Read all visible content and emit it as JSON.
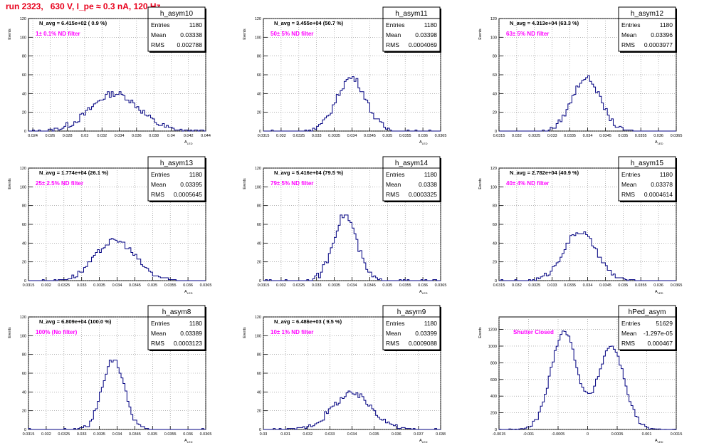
{
  "title": "run 2323,   630 V, I_pe ≈ 0.3 nA, 120 Hz",
  "y_axis_label": "Events",
  "x_axis_label": "A",
  "x_axis_label_sub": "LED",
  "stats_labels": {
    "entries": "Entries",
    "mean": "Mean",
    "rms": "RMS"
  },
  "colors": {
    "histogram": "#000080",
    "annotation": "#ff00ff",
    "title": "#e8001c"
  },
  "chart_data": [
    {
      "type": "histogram",
      "name": "h_asym10",
      "navg": "N_avg = 6.415e+02 ( 0.9 %)",
      "filter": "1± 0.1% ND filter",
      "entries": "1180",
      "mean": "0.03338",
      "rms": "0.002788",
      "xlim": [
        0.0235,
        0.044
      ],
      "ylim": [
        0,
        120
      ],
      "grid": true,
      "xticks": [
        0.024,
        0.026,
        0.028,
        0.03,
        0.032,
        0.034,
        0.036,
        0.038,
        0.04,
        0.042,
        0.044
      ],
      "xticklabels": [
        "0.024",
        "0.026",
        "0.028",
        "0.03",
        "0.032",
        "0.034",
        "0.036",
        "0.038",
        "0.04",
        "0.042",
        "0.044"
      ],
      "yticks": [
        0,
        20,
        40,
        60,
        80,
        100,
        120
      ],
      "yticklabels": [
        "0",
        "20",
        "40",
        "60",
        "80",
        "100",
        "120"
      ],
      "gauss": {
        "mu": 0.0335,
        "sigma": 0.0028,
        "peak": 40,
        "noise": 7
      }
    },
    {
      "type": "histogram",
      "name": "h_asym11",
      "navg": "N_avg = 3.455e+04 (50.7 %)",
      "filter": "50± 5% ND filter",
      "entries": "1180",
      "mean": "0.03398",
      "rms": "0.0004069",
      "xlim": [
        0.0315,
        0.0365
      ],
      "ylim": [
        0,
        120
      ],
      "grid": true,
      "xticks": [
        0.0315,
        0.032,
        0.0325,
        0.033,
        0.0335,
        0.034,
        0.0345,
        0.035,
        0.0355,
        0.036,
        0.0365
      ],
      "xticklabels": [
        "0.0315",
        "0.032",
        "0.0325",
        "0.033",
        "0.0335",
        "0.034",
        "0.0345",
        "0.035",
        "0.0355",
        "0.036",
        "0.0365"
      ],
      "yticks": [
        0,
        20,
        40,
        60,
        80,
        100,
        120
      ],
      "yticklabels": [
        "0",
        "20",
        "40",
        "60",
        "80",
        "100",
        "120"
      ],
      "gauss": {
        "mu": 0.03398,
        "sigma": 0.00041,
        "peak": 57,
        "noise": 7
      }
    },
    {
      "type": "histogram",
      "name": "h_asym12",
      "navg": "N_avg = 4.313e+04 (63.3 %)",
      "filter": "63± 5% ND filter",
      "entries": "1180",
      "mean": "0.03396",
      "rms": "0.0003977",
      "xlim": [
        0.0315,
        0.0365
      ],
      "ylim": [
        0,
        120
      ],
      "grid": true,
      "xticks": [
        0.0315,
        0.032,
        0.0325,
        0.033,
        0.0335,
        0.034,
        0.0345,
        0.035,
        0.0355,
        0.036,
        0.0365
      ],
      "xticklabels": [
        "0.0315",
        "0.032",
        "0.0325",
        "0.033",
        "0.0335",
        "0.034",
        "0.0345",
        "0.035",
        "0.0355",
        "0.036",
        "0.0365"
      ],
      "yticks": [
        0,
        20,
        40,
        60,
        80,
        100,
        120
      ],
      "yticklabels": [
        "0",
        "20",
        "40",
        "60",
        "80",
        "100",
        "120"
      ],
      "gauss": {
        "mu": 0.03396,
        "sigma": 0.0004,
        "peak": 57,
        "noise": 6
      }
    },
    {
      "type": "histogram",
      "name": "h_asym13",
      "navg": "N_avg = 1.774e+04 (26.1 %)",
      "filter": "25± 2.5% ND filter",
      "entries": "1180",
      "mean": "0.03395",
      "rms": "0.0005645",
      "xlim": [
        0.0315,
        0.0365
      ],
      "ylim": [
        0,
        120
      ],
      "grid": true,
      "xticks": [
        0.0315,
        0.032,
        0.0325,
        0.033,
        0.0335,
        0.034,
        0.0345,
        0.035,
        0.0355,
        0.036,
        0.0365
      ],
      "xticklabels": [
        "0.0315",
        "0.032",
        "0.0325",
        "0.033",
        "0.0335",
        "0.034",
        "0.0345",
        "0.035",
        "0.0355",
        "0.036",
        "0.0365"
      ],
      "yticks": [
        0,
        20,
        40,
        60,
        80,
        100,
        120
      ],
      "yticklabels": [
        "0",
        "20",
        "40",
        "60",
        "80",
        "100",
        "120"
      ],
      "gauss": {
        "mu": 0.03395,
        "sigma": 0.00056,
        "peak": 43,
        "noise": 6
      }
    },
    {
      "type": "histogram",
      "name": "h_asym14",
      "navg": "N_avg = 5.416e+04 (79.5 %)",
      "filter": "79± 5% ND filter",
      "entries": "1180",
      "mean": "0.0338",
      "rms": "0.0003325",
      "xlim": [
        0.0315,
        0.0365
      ],
      "ylim": [
        0,
        120
      ],
      "grid": true,
      "xticks": [
        0.0315,
        0.032,
        0.0325,
        0.033,
        0.0335,
        0.034,
        0.0345,
        0.035,
        0.0355,
        0.036,
        0.0365
      ],
      "xticklabels": [
        "0.0315",
        "0.032",
        "0.0325",
        "0.033",
        "0.0335",
        "0.034",
        "0.0345",
        "0.035",
        "0.0355",
        "0.036",
        "0.0365"
      ],
      "yticks": [
        0,
        20,
        40,
        60,
        80,
        100,
        120
      ],
      "yticklabels": [
        "0",
        "20",
        "40",
        "60",
        "80",
        "100",
        "120"
      ],
      "gauss": {
        "mu": 0.0338,
        "sigma": 0.00033,
        "peak": 70,
        "noise": 8
      }
    },
    {
      "type": "histogram",
      "name": "h_asym15",
      "navg": "N_avg = 2.782e+04 (40.9 %)",
      "filter": "40± 4% ND filter",
      "entries": "1180",
      "mean": "0.03378",
      "rms": "0.0004614",
      "xlim": [
        0.0315,
        0.0365
      ],
      "ylim": [
        0,
        120
      ],
      "grid": true,
      "xticks": [
        0.0315,
        0.032,
        0.0325,
        0.033,
        0.0335,
        0.034,
        0.0345,
        0.035,
        0.0355,
        0.036,
        0.0365
      ],
      "xticklabels": [
        "0.0315",
        "0.032",
        "0.0325",
        "0.033",
        "0.0335",
        "0.034",
        "0.0345",
        "0.035",
        "0.0355",
        "0.036",
        "0.0365"
      ],
      "yticks": [
        0,
        20,
        40,
        60,
        80,
        100,
        120
      ],
      "yticklabels": [
        "0",
        "20",
        "40",
        "60",
        "80",
        "100",
        "120"
      ],
      "gauss": {
        "mu": 0.03378,
        "sigma": 0.00046,
        "peak": 52,
        "noise": 6
      }
    },
    {
      "type": "histogram",
      "name": "h_asym8",
      "navg": "N_avg = 6.809e+04 (100.0 %)",
      "filter": "100% (No filter)",
      "entries": "1180",
      "mean": "0.03389",
      "rms": "0.0003123",
      "xlim": [
        0.0315,
        0.0365
      ],
      "ylim": [
        0,
        120
      ],
      "grid": true,
      "xticks": [
        0.0315,
        0.032,
        0.0325,
        0.033,
        0.0335,
        0.034,
        0.0345,
        0.035,
        0.0355,
        0.036,
        0.0365
      ],
      "xticklabels": [
        "0.0315",
        "0.032",
        "0.0325",
        "0.033",
        "0.0335",
        "0.034",
        "0.0345",
        "0.035",
        "0.0355",
        "0.036",
        "0.0365"
      ],
      "yticks": [
        0,
        20,
        40,
        60,
        80,
        100,
        120
      ],
      "yticklabels": [
        "0",
        "20",
        "40",
        "60",
        "80",
        "100",
        "120"
      ],
      "gauss": {
        "mu": 0.03389,
        "sigma": 0.00031,
        "peak": 75,
        "noise": 6
      }
    },
    {
      "type": "histogram",
      "name": "h_asym9",
      "navg": "N_avg = 6.486e+03 ( 9.5 %)",
      "filter": "10± 1% ND filter",
      "entries": "1180",
      "mean": "0.03399",
      "rms": "0.0009088",
      "xlim": [
        0.03,
        0.038
      ],
      "ylim": [
        0,
        120
      ],
      "grid": true,
      "xticks": [
        0.03,
        0.031,
        0.032,
        0.033,
        0.034,
        0.035,
        0.036,
        0.037,
        0.038
      ],
      "xticklabels": [
        "0.03",
        "0.031",
        "0.032",
        "0.033",
        "0.034",
        "0.035",
        "0.036",
        "0.037",
        "0.038"
      ],
      "yticks": [
        0,
        20,
        40,
        60,
        80,
        100,
        120
      ],
      "yticklabels": [
        "0",
        "20",
        "40",
        "60",
        "80",
        "100",
        "120"
      ],
      "gauss": {
        "mu": 0.034,
        "sigma": 0.0009,
        "peak": 38,
        "noise": 7
      }
    },
    {
      "type": "histogram",
      "name": "hPed_asym",
      "navg": "",
      "filter": "Shutter Closed",
      "entries": "51629",
      "mean": "-1.297e-05",
      "rms": "0.000467",
      "xlim": [
        -0.0015,
        0.0015
      ],
      "ylim": [
        0,
        1350
      ],
      "grid": true,
      "xticks": [
        -0.0015,
        -0.001,
        -0.0005,
        0,
        0.0005,
        0.001,
        0.0015
      ],
      "xticklabels": [
        "-0.0015",
        "-0.001",
        "-0.0005",
        "0",
        "0.0005",
        "0.001",
        "0.0015"
      ],
      "yticks": [
        0,
        200,
        400,
        600,
        800,
        1000,
        1200
      ],
      "yticklabels": [
        "0",
        "200",
        "400",
        "600",
        "800",
        "1000",
        "1200"
      ],
      "double": {
        "mu1": -0.0004,
        "sigma1": 0.00022,
        "peak1": 1180,
        "mu2": 0.0004,
        "sigma2": 0.00022,
        "peak2": 1000,
        "noise": 60
      }
    }
  ]
}
